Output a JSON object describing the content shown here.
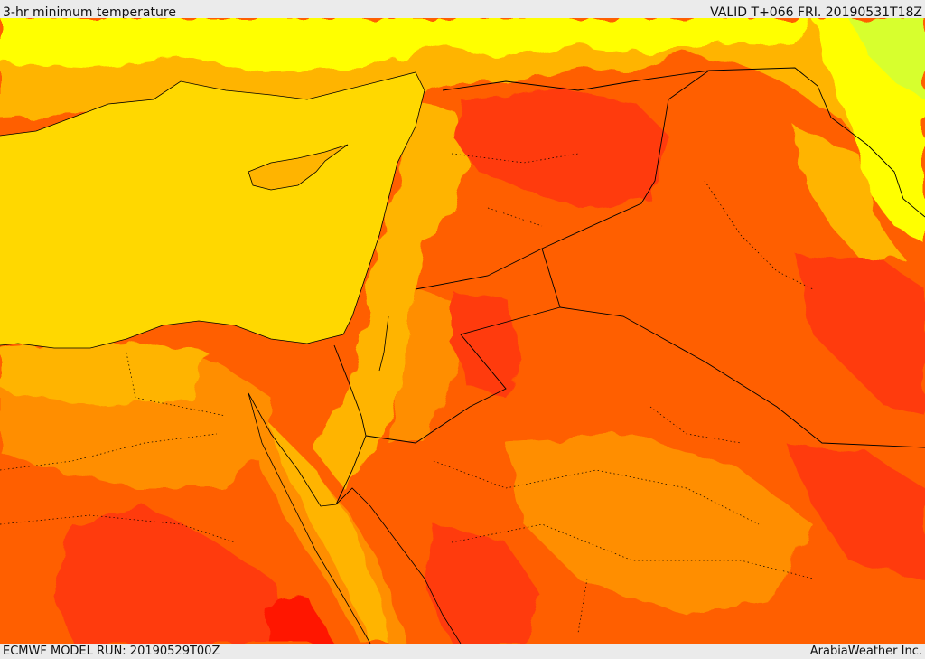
{
  "header": {
    "title": "3-hr minimum temperature",
    "valid": "VALID T+066 FRI. 20190531T18Z"
  },
  "footer": {
    "model_run": "ECMWF MODEL RUN: 20190529T00Z",
    "provider": "ArabiaWeather Inc."
  },
  "map": {
    "variable": "3-hr minimum temperature",
    "colors": {
      "sea": "#ffd800",
      "band_1": "#ffb400",
      "band_2": "#ff8e00",
      "band_3": "#ff5f00",
      "band_4": "#ff3a10",
      "band_5": "#ff1400",
      "cool_1": "#ffff00",
      "cool_2": "#d7ff2d",
      "cool_3": "#31df3a",
      "border": "#000000"
    }
  }
}
